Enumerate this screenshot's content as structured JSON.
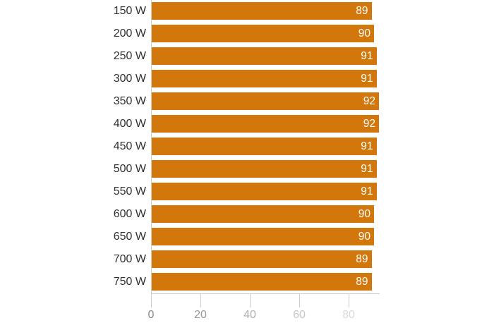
{
  "chart_data": {
    "type": "bar",
    "orientation": "horizontal",
    "title": "",
    "xlabel": "",
    "ylabel": "",
    "categories": [
      "150 W",
      "200 W",
      "250 W",
      "300 W",
      "350 W",
      "400 W",
      "450 W",
      "500 W",
      "550 W",
      "600 W",
      "650 W",
      "700 W",
      "750 W"
    ],
    "values": [
      89,
      90,
      91,
      91,
      92,
      92,
      91,
      91,
      91,
      90,
      90,
      89,
      89
    ],
    "xlim": [
      0,
      92
    ],
    "grid": false,
    "legend": false,
    "x_ticks": [
      {
        "value": 0,
        "label": "0",
        "color": "#878787"
      },
      {
        "value": 20,
        "label": "20",
        "color": "#989898"
      },
      {
        "value": 40,
        "label": "40",
        "color": "#aeaeae"
      },
      {
        "value": 60,
        "label": "60",
        "color": "#c6c6c6"
      },
      {
        "value": 80,
        "label": "80",
        "color": "#dadada"
      }
    ],
    "colors": {
      "bar": "#d1770b",
      "value_label": "#ffffff",
      "category_label": "#303030",
      "axis": "#cccccc"
    }
  }
}
